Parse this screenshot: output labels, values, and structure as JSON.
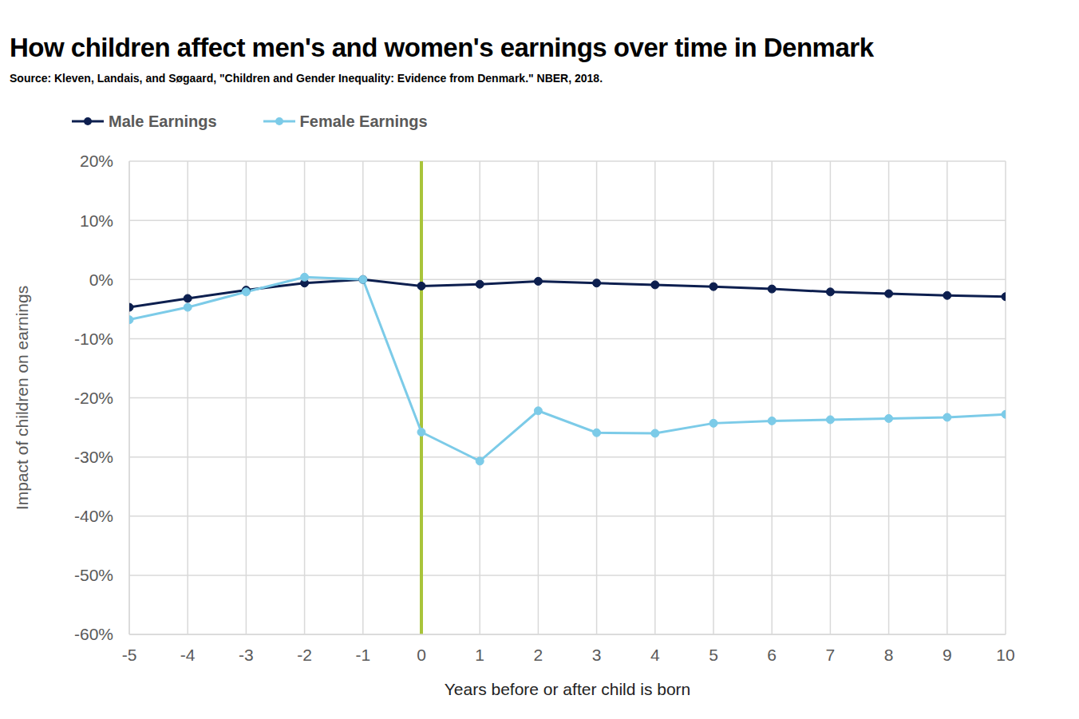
{
  "chart_data": {
    "type": "line",
    "title": "How children affect men's and women's earnings over time in Denmark",
    "subtitle": "Source: Kleven, Landais, and Søgaard, \"Children and Gender Inequality: Evidence from Denmark.\" NBER, 2018.",
    "x_label": "Years before or after child is born",
    "y_label": "Impact of children on earnings",
    "x": [
      -5,
      -4,
      -3,
      -2,
      -1,
      0,
      1,
      2,
      3,
      4,
      5,
      6,
      7,
      8,
      9,
      10
    ],
    "series": [
      {
        "name": "Male Earnings",
        "color": "#0d1f4f",
        "marker": "circle",
        "line_style": "solid",
        "values": [
          -4.7,
          -3.2,
          -1.8,
          -0.6,
          0,
          -1.1,
          -0.8,
          -0.3,
          -0.6,
          -0.9,
          -1.2,
          -1.6,
          -2.1,
          -2.4,
          -2.7,
          -2.9
        ]
      },
      {
        "name": "Female Earnings",
        "color": "#7ccbe8",
        "marker": "circle",
        "line_style": "solid",
        "values": [
          -6.8,
          -4.7,
          -2.1,
          0.4,
          0,
          -25.8,
          -30.7,
          -22.2,
          -25.9,
          -26.0,
          -24.3,
          -23.9,
          -23.7,
          -23.5,
          -23.3,
          -22.8
        ]
      }
    ],
    "xlim": [
      -5,
      10
    ],
    "xticks": [
      -5,
      -4,
      -3,
      -2,
      -1,
      0,
      1,
      2,
      3,
      4,
      5,
      6,
      7,
      8,
      9,
      10
    ],
    "ylim": [
      -60,
      20
    ],
    "yticks": [
      {
        "value": -60,
        "label": "-60%"
      },
      {
        "value": -50,
        "label": "-50%"
      },
      {
        "value": -40,
        "label": "-40%"
      },
      {
        "value": -30,
        "label": "-30%"
      },
      {
        "value": -20,
        "label": "-20%"
      },
      {
        "value": -10,
        "label": "-10%"
      },
      {
        "value": 0,
        "label": "0%"
      },
      {
        "value": 10,
        "label": "10%"
      },
      {
        "value": 20,
        "label": "20%"
      }
    ],
    "reference_lines": [
      {
        "x": 0,
        "color": "#a8c43a"
      }
    ],
    "grid": true,
    "legend": "top-left"
  }
}
